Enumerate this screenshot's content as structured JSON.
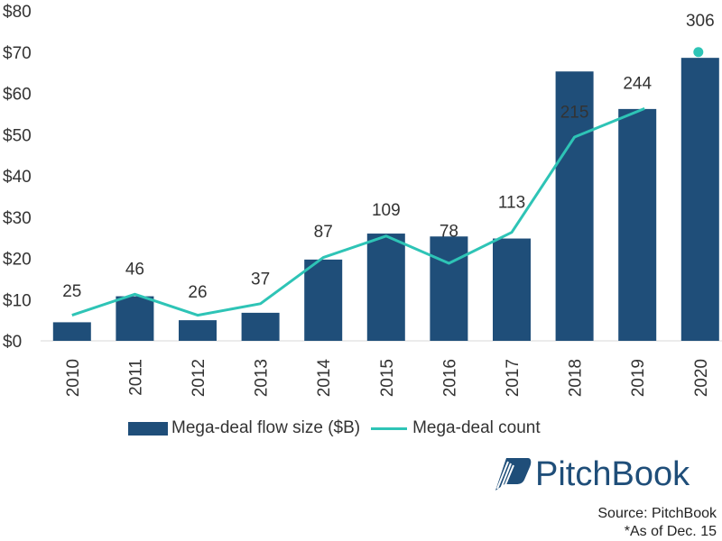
{
  "colors": {
    "bar": "#1f4e79",
    "line": "#2ec4b6",
    "text": "#333333"
  },
  "chart_data": {
    "type": "bar",
    "title": "",
    "xlabel": "",
    "ylabel": "",
    "categories": [
      "2010",
      "2011",
      "2012",
      "2013",
      "2014",
      "2015",
      "2016",
      "2017",
      "2018",
      "2019",
      "2020"
    ],
    "ylim": [
      0,
      80
    ],
    "yticks": [
      0,
      10,
      20,
      30,
      40,
      50,
      60,
      70,
      80
    ],
    "ytick_labels": [
      "$0",
      "$10",
      "$20",
      "$30",
      "$40",
      "$50",
      "$60",
      "$70",
      "$80"
    ],
    "series": [
      {
        "name": "Mega-deal flow size ($B)",
        "kind": "bar",
        "values": [
          4.5,
          10.8,
          5.0,
          6.8,
          19.7,
          26.0,
          25.3,
          24.8,
          65.3,
          56.2,
          68.6
        ]
      },
      {
        "name": "Mega-deal count",
        "kind": "line",
        "values": [
          25,
          46,
          26,
          37,
          87,
          109,
          78,
          113,
          215,
          244,
          306
        ],
        "plot_values": [
          6.2,
          11.3,
          6.2,
          9.0,
          20.2,
          25.4,
          18.8,
          26.3,
          49.4,
          56.3,
          70.0
        ],
        "data_labels": [
          "25",
          "46",
          "26",
          "37",
          "87",
          "109",
          "78",
          "113",
          "215",
          "244",
          "306"
        ],
        "label_values": [
          12.2,
          17.6,
          12.0,
          15.2,
          26.7,
          31.9,
          26.8,
          33.8,
          55.6,
          62.6,
          77.8
        ],
        "last_point_marker_only": true
      }
    ],
    "legend": "bottom"
  },
  "logo": {
    "text": "PitchBook"
  },
  "source": {
    "line1": "Source: PitchBook",
    "line2": "*As of Dec. 15"
  }
}
